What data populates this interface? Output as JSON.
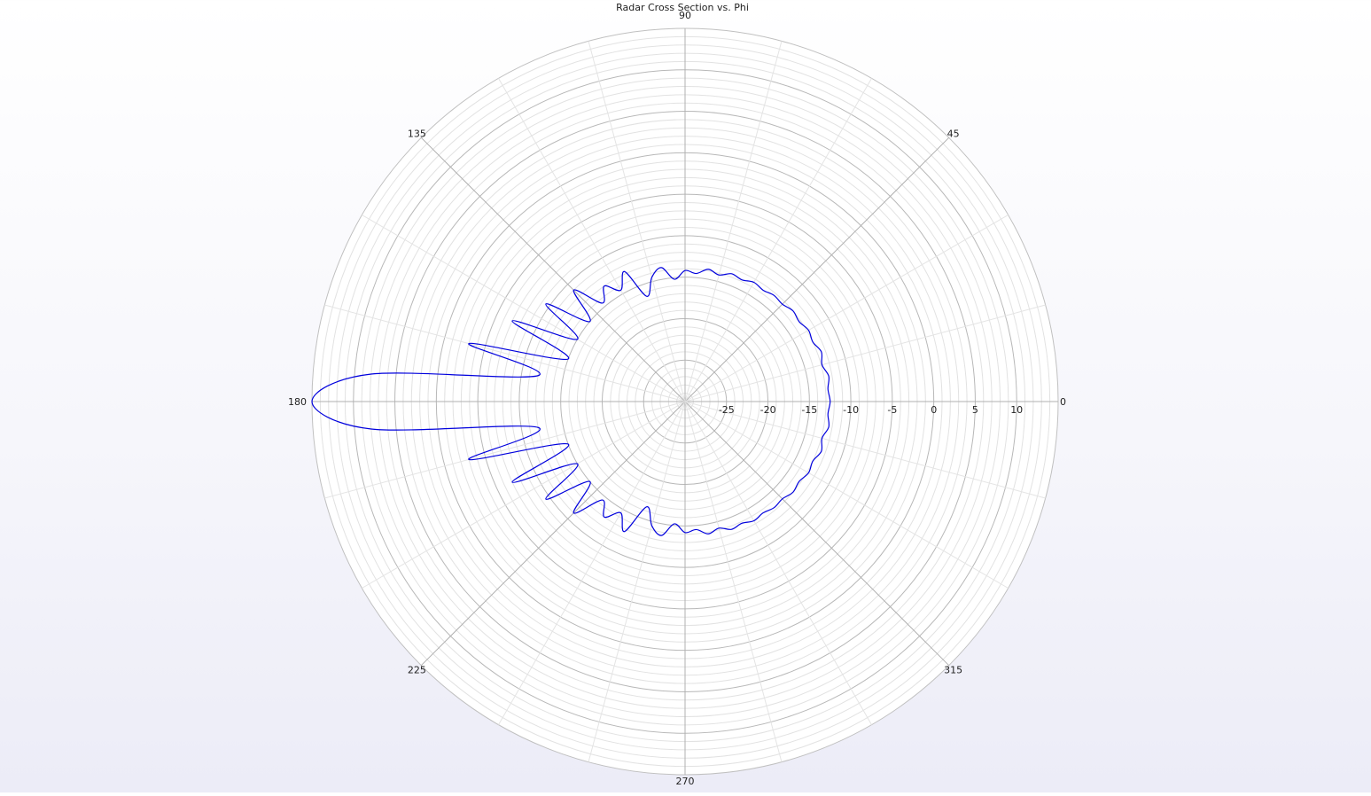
{
  "chart_data": {
    "type": "polar-line",
    "title": "Radar Cross Section vs. Phi",
    "angle_unit": "deg",
    "angle_ticks": [
      "0",
      "45",
      "90",
      "135",
      "180",
      "225",
      "270",
      "315"
    ],
    "radial_tick_labels": [
      "-25",
      "-20",
      "-15",
      "-10",
      "-5",
      "0",
      "5",
      "10"
    ],
    "rlim": [
      -30,
      15
    ],
    "grid": true,
    "series_color": "#0000dd",
    "series": [
      {
        "phi": [
          0,
          5,
          10,
          15,
          20,
          25,
          30,
          35,
          40,
          45,
          50,
          55,
          60,
          65,
          70,
          75,
          80,
          85,
          90,
          95,
          100,
          105,
          110,
          115,
          120,
          125,
          130,
          135,
          140,
          145,
          150,
          155,
          160,
          165,
          170,
          175,
          180
        ],
        "rcs_db": [
          -12.5,
          -12.7,
          -12.4,
          -12.9,
          -12.5,
          -13.0,
          -12.8,
          -13.2,
          -13.0,
          -13.4,
          -13.3,
          -13.6,
          -13.4,
          -13.8,
          -13.6,
          -14.2,
          -13.8,
          -14.5,
          -14.2,
          -15.2,
          -13.6,
          -14.5,
          -16.5,
          -12.7,
          -14.5,
          -13.0,
          -14.5,
          -11.0,
          -15.0,
          -9.5,
          -15.0,
          -7.0,
          -15.0,
          -3.0,
          -12.0,
          8.0,
          15.0
        ]
      }
    ]
  }
}
